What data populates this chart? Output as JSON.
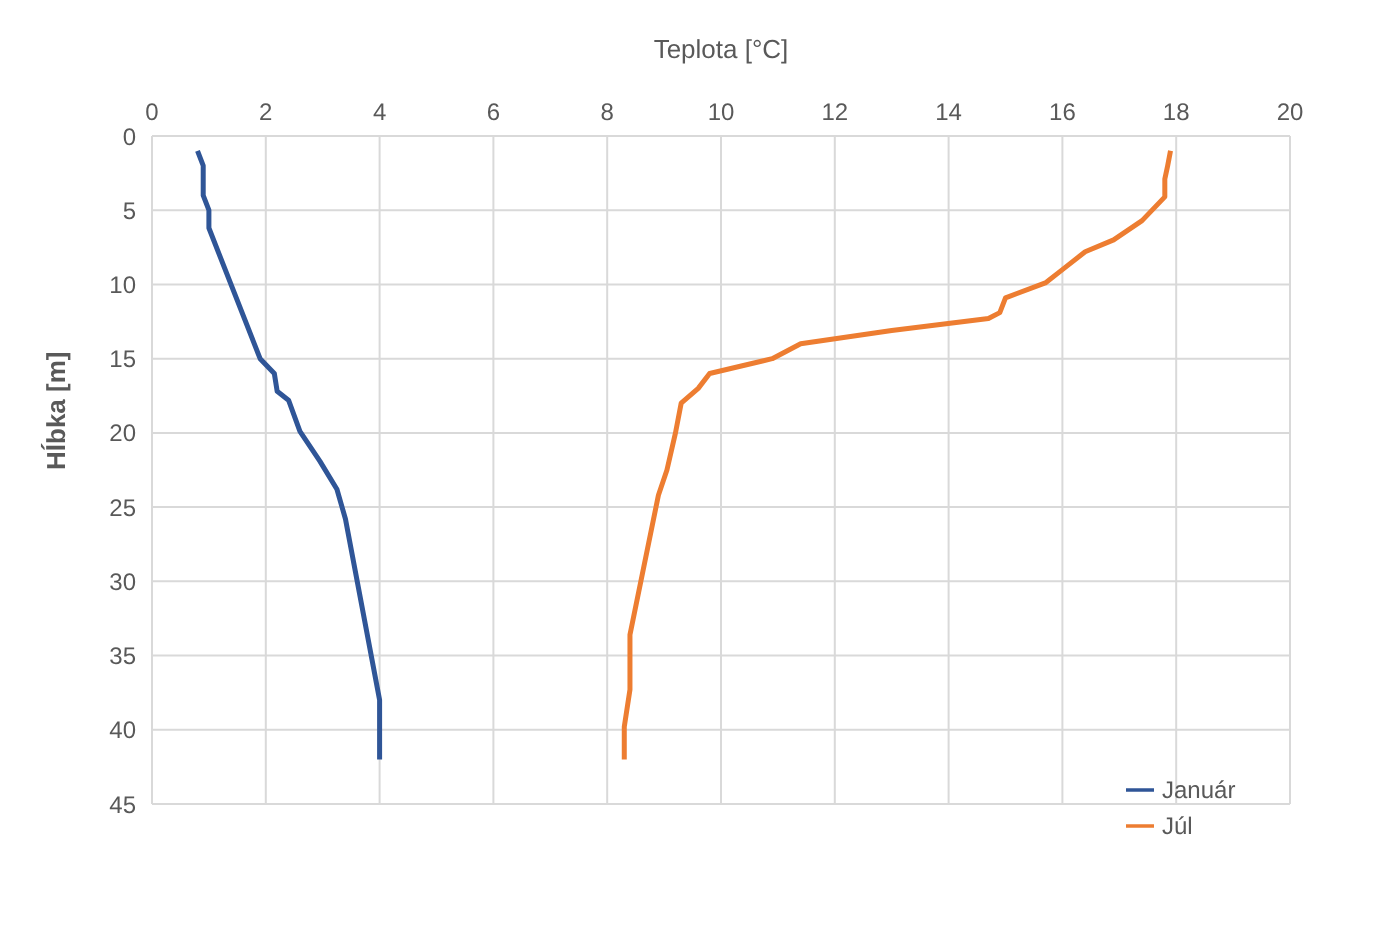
{
  "chart_data": {
    "type": "line",
    "xlabel": "Teplota [°C]",
    "ylabel": "Hĺbka [m]",
    "xlim": [
      0,
      20
    ],
    "xticks": [
      0,
      2,
      4,
      6,
      8,
      10,
      12,
      14,
      16,
      18,
      20
    ],
    "ylim": [
      45,
      0
    ],
    "yticks": [
      0,
      5,
      10,
      15,
      20,
      25,
      30,
      35,
      40,
      45
    ],
    "grid": true,
    "legend": "bottom right",
    "marker": "none",
    "line_style": "solid",
    "series": [
      {
        "name": "Január",
        "color": "#2f5597",
        "x": [
          0.8,
          0.9,
          0.9,
          1.0,
          1.0,
          1.9,
          2.15,
          2.2,
          2.4,
          2.6,
          2.95,
          3.25,
          3.4,
          4.0,
          4.0
        ],
        "values": [
          1,
          2,
          4,
          5,
          6.2,
          15,
          16,
          17.2,
          17.8,
          19.9,
          21.9,
          23.8,
          25.8,
          38,
          42
        ]
      },
      {
        "name": "Júl",
        "color": "#ed7d31",
        "x": [
          17.9,
          17.85,
          17.8,
          17.8,
          17.4,
          16.9,
          16.4,
          16.0,
          15.7,
          15.0,
          14.9,
          14.7,
          13.0,
          11.4,
          10.9,
          9.8,
          9.6,
          9.3,
          9.2,
          9.05,
          8.9,
          8.4,
          8.4,
          8.3,
          8.3
        ],
        "values": [
          1,
          2,
          2.9,
          4.1,
          5.7,
          7,
          7.8,
          9,
          9.9,
          10.9,
          11.9,
          12.3,
          13.1,
          14,
          15,
          16,
          17,
          18,
          20,
          22.5,
          24.2,
          33.6,
          37.3,
          39.8,
          42
        ]
      }
    ]
  }
}
